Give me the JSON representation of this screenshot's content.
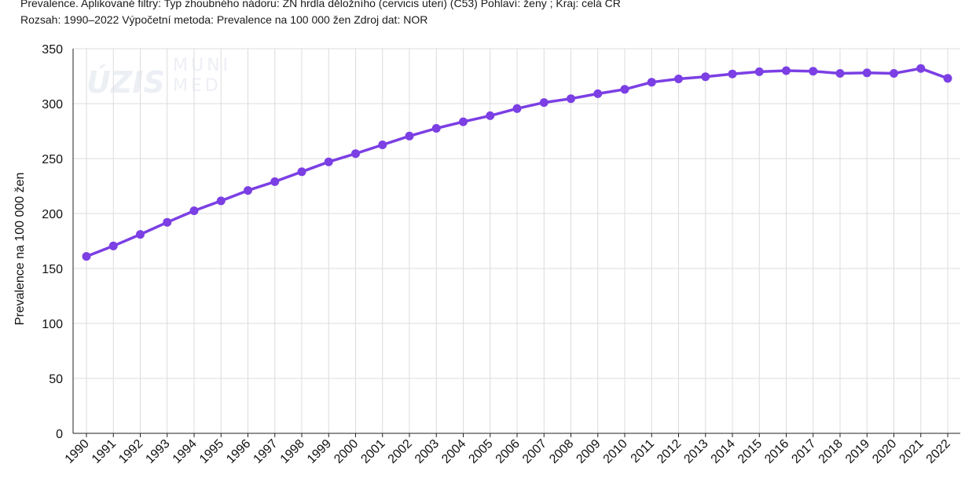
{
  "header": {
    "line1": "Prevalence. Aplikované filtry: Typ zhoubného nádoru: ZN hrdla děložního (cervicis uteri) (C53) Pohlaví: ženy ; Kraj: celá CR",
    "line2": "Rozsah: 1990–2022 Výpočetní metoda: Prevalence na 100 000 žen Zdroj dat: NOR"
  },
  "watermark": {
    "logo1": "ÚZIS",
    "logo2_line1": "MUNI",
    "logo2_line2": "MED"
  },
  "chart_data": {
    "type": "line",
    "title": "",
    "xlabel": "",
    "ylabel": "Prevalence na 100 000 žen",
    "ylim": [
      0,
      350
    ],
    "yticks": [
      0,
      50,
      100,
      150,
      200,
      250,
      300,
      350
    ],
    "grid": true,
    "legend": "none",
    "color": "#7b3fe4",
    "categories": [
      "1990",
      "1991",
      "1992",
      "1993",
      "1994",
      "1995",
      "1996",
      "1997",
      "1998",
      "1999",
      "2000",
      "2001",
      "2002",
      "2003",
      "2004",
      "2005",
      "2006",
      "2007",
      "2008",
      "2009",
      "2010",
      "2011",
      "2012",
      "2013",
      "2014",
      "2015",
      "2016",
      "2017",
      "2018",
      "2019",
      "2020",
      "2021",
      "2022"
    ],
    "values": [
      161,
      170.5,
      181,
      192,
      202.5,
      211.5,
      221,
      229,
      238,
      247,
      254.5,
      262.5,
      270.5,
      277.5,
      283.5,
      289,
      295.5,
      301,
      304.5,
      309,
      313,
      319.5,
      322.5,
      324.5,
      327,
      329,
      330,
      329.5,
      327.5,
      328,
      327.5,
      332,
      323
    ]
  }
}
